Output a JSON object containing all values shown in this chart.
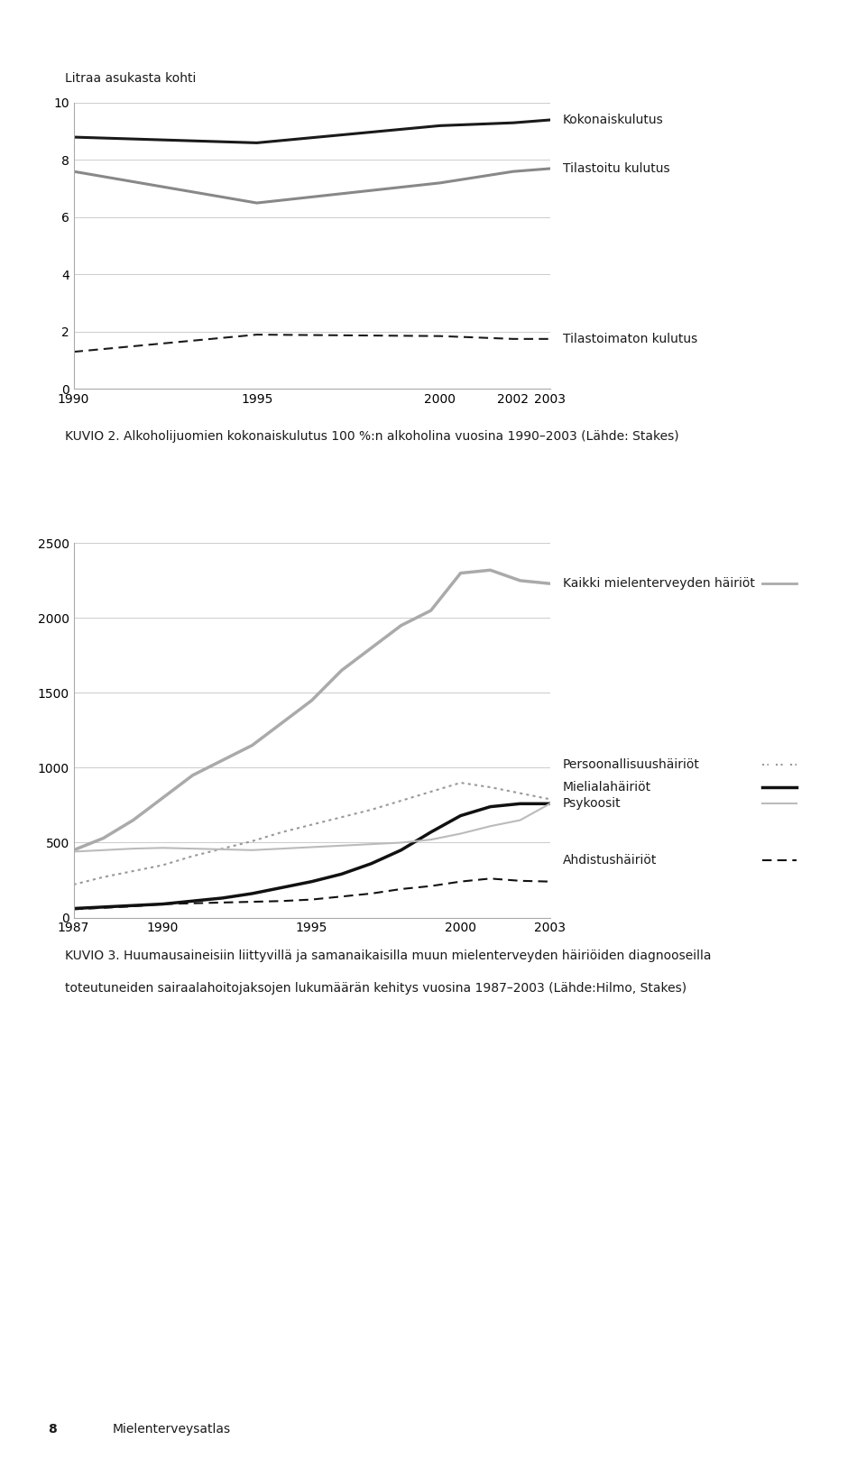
{
  "chart1": {
    "ylabel": "Litraa asukasta kohti",
    "years": [
      1990,
      1995,
      2000,
      2002,
      2003
    ],
    "kokonaiskulutus": [
      8.8,
      8.6,
      9.2,
      9.3,
      9.4
    ],
    "tilastoitu": [
      7.6,
      6.5,
      7.2,
      7.6,
      7.7
    ],
    "tilastoimaton": [
      1.3,
      1.9,
      1.85,
      1.75,
      1.75
    ],
    "ylim": [
      0,
      10
    ],
    "yticks": [
      0,
      2,
      4,
      6,
      8,
      10
    ],
    "xticks": [
      1990,
      1995,
      2000,
      2002,
      2003
    ],
    "legend_kokonaiskulutus": "Kokonaiskulutus",
    "legend_tilastoitu": "Tilastoitu kulutus",
    "legend_tilastoimaton": "Tilastoimaton kulutus",
    "color_kokonaiskulutus": "#1a1a1a",
    "color_tilastoitu": "#888888",
    "color_tilastoimaton": "#1a1a1a",
    "caption": "KUVIO 2. Alkoholijuomien kokonaiskulutus 100 %:n alkoholina vuosina 1990–2003 (Lähde: Stakes)"
  },
  "chart2": {
    "years": [
      1987,
      1988,
      1989,
      1990,
      1991,
      1992,
      1993,
      1994,
      1995,
      1996,
      1997,
      1998,
      1999,
      2000,
      2001,
      2002,
      2003
    ],
    "kaikki": [
      450,
      530,
      650,
      800,
      950,
      1050,
      1150,
      1300,
      1450,
      1650,
      1800,
      1950,
      2050,
      2300,
      2320,
      2250,
      2230
    ],
    "persoonallisuus": [
      220,
      270,
      310,
      350,
      410,
      460,
      510,
      570,
      620,
      670,
      720,
      780,
      840,
      900,
      870,
      830,
      790
    ],
    "mielialahairiot": [
      60,
      70,
      80,
      90,
      110,
      130,
      160,
      200,
      240,
      290,
      360,
      450,
      570,
      680,
      740,
      760,
      760
    ],
    "psykoosit": [
      440,
      450,
      460,
      465,
      460,
      455,
      450,
      460,
      470,
      480,
      490,
      500,
      520,
      560,
      610,
      650,
      760
    ],
    "ahdistushairiot": [
      55,
      65,
      75,
      90,
      95,
      100,
      105,
      110,
      120,
      140,
      160,
      190,
      210,
      240,
      260,
      245,
      240
    ],
    "ylim": [
      0,
      2500
    ],
    "yticks": [
      0,
      500,
      1000,
      1500,
      2000,
      2500
    ],
    "xticks": [
      1987,
      1990,
      1995,
      2000,
      2003
    ],
    "legend_kaikki": "Kaikki mielenterveyden häiriöt",
    "legend_persoonallisuus": "Persoonallisuushäiriöt",
    "legend_mielialahairiot": "Mielialahäiriöt",
    "legend_psykoosit": "Psykoosit",
    "legend_ahdistushairiot": "Ahdistushäiriöt",
    "color_kaikki": "#aaaaaa",
    "color_persoonallisuus": "#999999",
    "color_mielialahairiot": "#111111",
    "color_psykoosit": "#bbbbbb",
    "color_ahdistushairiot": "#111111",
    "caption_line1": "KUVIO 3. Huumausaineisiin liittyvillä ja samanaikaisilla muun mielenterveyden häiriöiden diagnooseilla",
    "caption_line2": "toteutuneiden sairaalahoitojaksojen lukumäärän kehitys vuosina 1987–2003 (Lähde:Hilmo, Stakes)"
  },
  "footer_num": "8",
  "footer_text": "Mielenterveysatlas",
  "background_color": "#ffffff"
}
